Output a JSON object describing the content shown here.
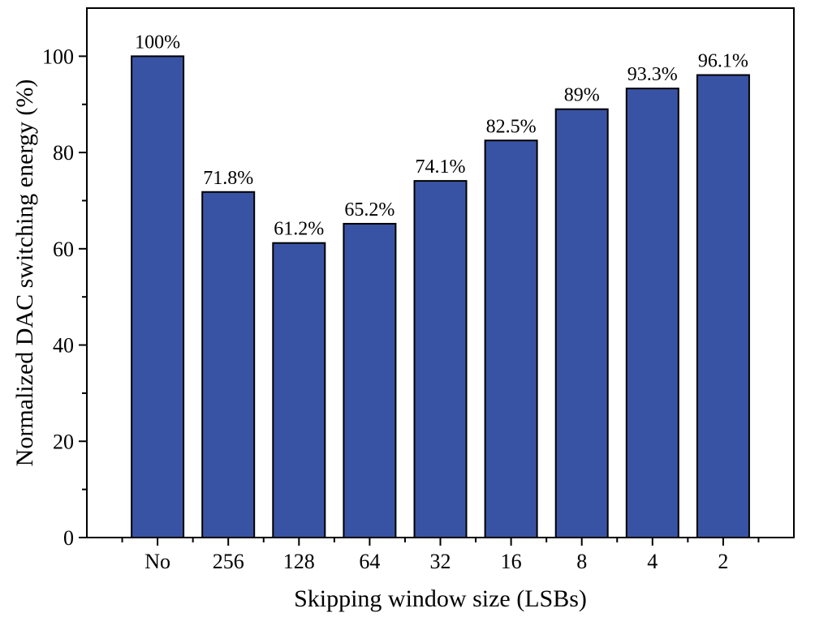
{
  "chart_data": {
    "type": "bar",
    "xlabel": "Skipping window size (LSBs)",
    "ylabel": "Normalized DAC switching energy (%)",
    "categories": [
      "No",
      "256",
      "128",
      "64",
      "32",
      "16",
      "8",
      "4",
      "2"
    ],
    "values": [
      100,
      71.8,
      61.2,
      65.2,
      74.1,
      82.5,
      89,
      93.3,
      96.1
    ],
    "data_labels": [
      "100%",
      "71.8%",
      "61.2%",
      "65.2%",
      "74.1%",
      "82.5%",
      "89%",
      "93.3%",
      "96.1%"
    ],
    "ylim": [
      0,
      110
    ],
    "yticks": [
      0,
      20,
      40,
      60,
      80,
      100
    ],
    "ytick_labels": [
      "0",
      "20",
      "40",
      "60",
      "80",
      "100"
    ],
    "grid": false,
    "bar_color": "#3953a4"
  }
}
